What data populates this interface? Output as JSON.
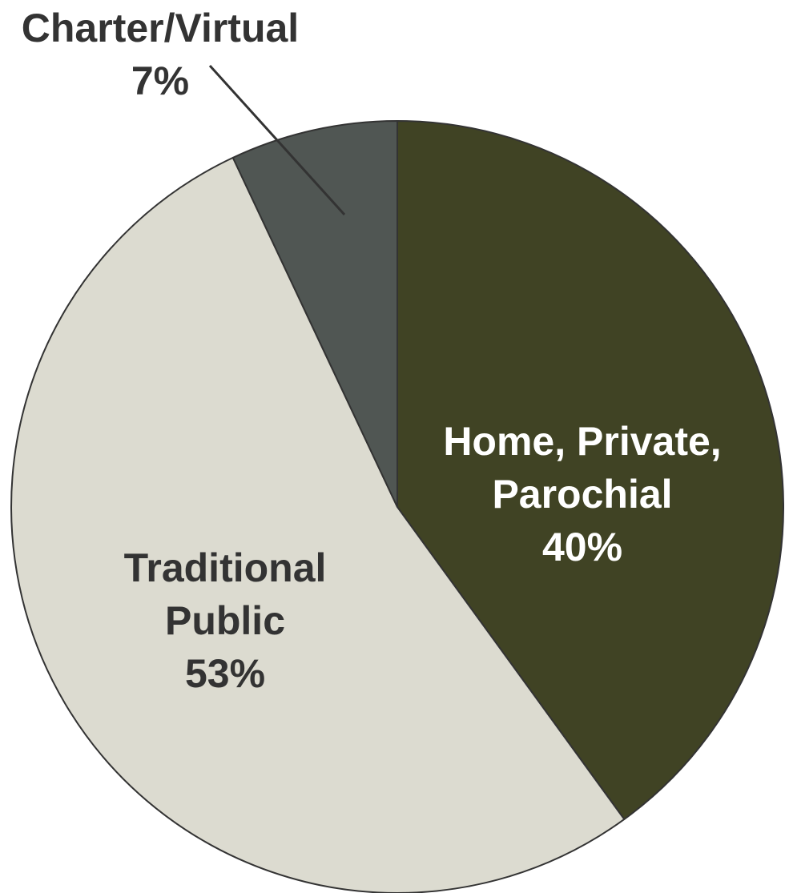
{
  "chart_data": {
    "type": "pie",
    "title": "",
    "slices": [
      {
        "label": "Home, Private, Parochial",
        "label_lines": [
          "Home, Private,",
          "Parochial"
        ],
        "value": 40,
        "value_label": "40%",
        "color": "#404324",
        "text_color": "#ffffff"
      },
      {
        "label": "Traditional Public",
        "label_lines": [
          "Traditional",
          "Public"
        ],
        "value": 53,
        "value_label": "53%",
        "color": "#dcdbd0",
        "text_color": "#333333"
      },
      {
        "label": "Charter/Virtual",
        "label_lines": [
          "Charter/Virtual"
        ],
        "value": 7,
        "value_label": "7%",
        "color": "#505653",
        "text_color": "#333333",
        "external_label": true
      }
    ],
    "start": "12-o-clock",
    "direction": "clockwise",
    "outline_color": "#333333"
  }
}
